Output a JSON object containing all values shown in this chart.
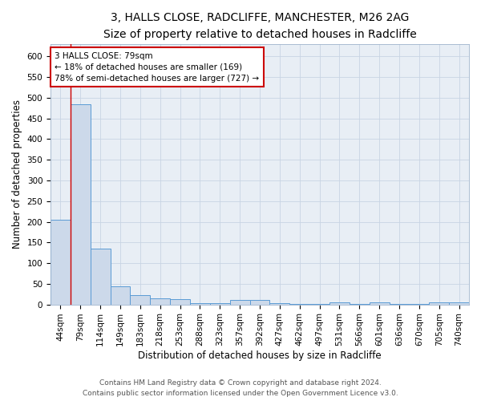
{
  "title_line1": "3, HALLS CLOSE, RADCLIFFE, MANCHESTER, M26 2AG",
  "title_line2": "Size of property relative to detached houses in Radcliffe",
  "xlabel": "Distribution of detached houses by size in Radcliffe",
  "ylabel": "Number of detached properties",
  "bar_labels": [
    "44sqm",
    "79sqm",
    "114sqm",
    "149sqm",
    "183sqm",
    "218sqm",
    "253sqm",
    "288sqm",
    "323sqm",
    "357sqm",
    "392sqm",
    "427sqm",
    "462sqm",
    "497sqm",
    "531sqm",
    "566sqm",
    "601sqm",
    "636sqm",
    "670sqm",
    "705sqm",
    "740sqm"
  ],
  "bar_values": [
    204,
    484,
    135,
    43,
    23,
    14,
    13,
    4,
    4,
    10,
    10,
    4,
    2,
    2,
    5,
    2,
    5,
    2,
    2,
    5,
    5
  ],
  "bar_color": "#ccd9ea",
  "bar_edge_color": "#5b9bd5",
  "plot_bg_color": "#e8eef5",
  "background_color": "#ffffff",
  "grid_color": "#c8d4e4",
  "annotation_text_line1": "3 HALLS CLOSE: 79sqm",
  "annotation_text_line2": "← 18% of detached houses are smaller (169)",
  "annotation_text_line3": "78% of semi-detached houses are larger (727) →",
  "annotation_box_edge_color": "#cc0000",
  "property_bar_index": 1,
  "ylim": [
    0,
    630
  ],
  "yticks": [
    0,
    50,
    100,
    150,
    200,
    250,
    300,
    350,
    400,
    450,
    500,
    550,
    600
  ],
  "footer_line1": "Contains HM Land Registry data © Crown copyright and database right 2024.",
  "footer_line2": "Contains public sector information licensed under the Open Government Licence v3.0.",
  "title_fontsize": 10,
  "subtitle_fontsize": 9,
  "axis_label_fontsize": 8.5,
  "tick_fontsize": 7.5,
  "annotation_fontsize": 7.5,
  "footer_fontsize": 6.5
}
